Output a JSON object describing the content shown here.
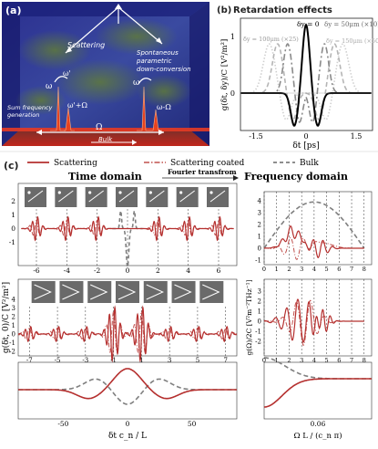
{
  "panel_a": {
    "tag": "(a)",
    "scattering": "Scattering",
    "spontaneous": "Spontaneous",
    "parametric": "parametric",
    "downconversion": "down-conversion",
    "omega": "ω",
    "omega_plus": "ω'+Ω",
    "omega_prime": "ω'",
    "omega_minus": "ω-Ω",
    "omega_right": "ω",
    "sum1": "Sum frequency",
    "sum2": "generation",
    "Omega": "Ω",
    "bulk": "Bulk"
  },
  "panel_b": {
    "tag": "(b)",
    "title": "Retardation effects",
    "ylabel": "g(δt, δy)/C  [V²/m²]",
    "xlabel": "δt [ps]",
    "ticks_x": [
      "-1.5",
      "0",
      "1.5"
    ],
    "ticks_y": [
      "1",
      "0"
    ],
    "ann": [
      "δy = 0",
      "δy = 50μm (×10)",
      "δy = 100μm (×25)",
      "δy = 150μm (×50)"
    ],
    "colors": {
      "dy0": "#000000",
      "dy50": "#8a8a8a",
      "dy100": "#b5b5b5",
      "dy150": "#cfcfcf"
    }
  },
  "panel_c": {
    "tag": "(c)",
    "legend": [
      "Scattering",
      "Scattering coated",
      "Bulk"
    ],
    "time_domain": "Time domain",
    "fourier": "Fourier transfrom",
    "freq_domain": "Frequency domain",
    "ylabel_left": "g(δt, 0)/C   [V²/m²]",
    "ylabel_right_top": "g(Ω)/2C   [V²m⁻²THz⁻¹]",
    "xlabel_left": "δt c_n / L",
    "xlabel_right": "Ω L / (c_n π)",
    "ticks_left_top_x": [
      "-6",
      "-4",
      "-2",
      "0",
      "2",
      "4",
      "6"
    ],
    "ticks_left_mid_x": [
      "-7",
      "-5",
      "-3",
      "-1",
      "1",
      "3",
      "5",
      "7"
    ],
    "ticks_left_bot_x": [
      "-50",
      "0",
      "50"
    ],
    "ticks_left_top_y": [
      "2",
      "1",
      "0",
      "-1"
    ],
    "ticks_left_mid_y": [
      "4",
      "3",
      "2",
      "1",
      "0",
      "-1",
      "-2"
    ],
    "ticks_right_top_x": [
      "0",
      "1",
      "2",
      "3",
      "4",
      "5",
      "6",
      "7",
      "8"
    ],
    "ticks_right_mid_x": [
      "0",
      "1",
      "2",
      "3",
      "4",
      "5",
      "6",
      "7",
      "8"
    ],
    "ticks_right_top_y": [
      "4",
      "3",
      "2",
      "1",
      "0",
      "-1"
    ],
    "ticks_right_mid_y": [
      "3",
      "2",
      "1",
      "0",
      "-1",
      "-2"
    ],
    "ticks_right_bot_x": [
      "0.06"
    ],
    "colors": {
      "scattering": "#b5302f",
      "coated": "#c0504d",
      "bulk": "#7f7f7f"
    }
  }
}
